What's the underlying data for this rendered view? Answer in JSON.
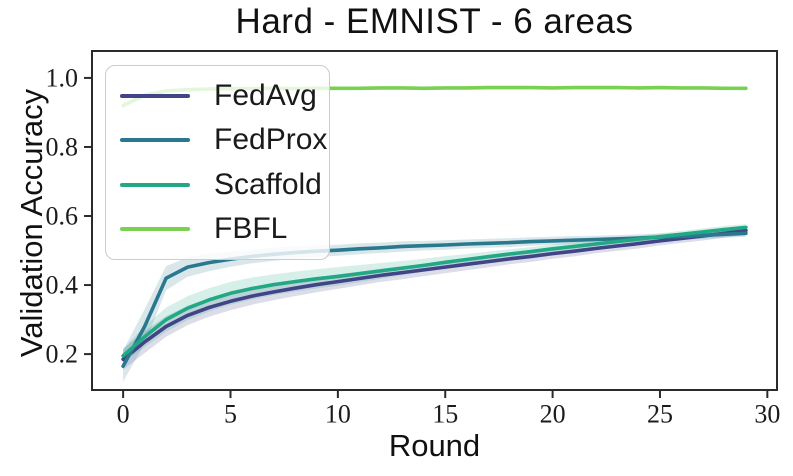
{
  "chart_data": {
    "type": "line",
    "title": "Hard - EMNIST - 6 areas",
    "xlabel": "Round",
    "ylabel": "Validation Accuracy",
    "x_ticks": [
      0,
      5,
      10,
      15,
      20,
      25,
      30
    ],
    "y_ticks": [
      0.2,
      0.4,
      0.6,
      0.8,
      1.0
    ],
    "xlim": [
      -1.45,
      30.45
    ],
    "ylim": [
      0.096,
      1.078
    ],
    "grid": false,
    "legend_position": "upper left",
    "x": [
      0,
      1,
      2,
      3,
      4,
      5,
      6,
      7,
      8,
      9,
      10,
      11,
      12,
      13,
      14,
      15,
      16,
      17,
      18,
      19,
      20,
      21,
      22,
      23,
      24,
      25,
      26,
      27,
      28,
      29
    ],
    "series": [
      {
        "name": "FedAvg",
        "color": "#414487",
        "values": [
          0.185,
          0.235,
          0.28,
          0.312,
          0.335,
          0.353,
          0.368,
          0.38,
          0.391,
          0.401,
          0.41,
          0.419,
          0.428,
          0.436,
          0.444,
          0.452,
          0.46,
          0.468,
          0.476,
          0.483,
          0.491,
          0.498,
          0.506,
          0.513,
          0.52,
          0.528,
          0.535,
          0.542,
          0.55,
          0.558
        ],
        "std": [
          0.03,
          0.032,
          0.03,
          0.028,
          0.027,
          0.026,
          0.025,
          0.024,
          0.023,
          0.022,
          0.021,
          0.02,
          0.019,
          0.019,
          0.018,
          0.018,
          0.017,
          0.017,
          0.016,
          0.016,
          0.015,
          0.015,
          0.014,
          0.014,
          0.014,
          0.013,
          0.013,
          0.013,
          0.013,
          0.013
        ]
      },
      {
        "name": "FedProx",
        "color": "#2a788e",
        "values": [
          0.165,
          0.28,
          0.42,
          0.452,
          0.465,
          0.475,
          0.483,
          0.489,
          0.494,
          0.498,
          0.501,
          0.505,
          0.508,
          0.512,
          0.514,
          0.516,
          0.519,
          0.521,
          0.523,
          0.526,
          0.528,
          0.53,
          0.532,
          0.534,
          0.536,
          0.539,
          0.541,
          0.544,
          0.547,
          0.55
        ],
        "std": [
          0.045,
          0.05,
          0.035,
          0.028,
          0.025,
          0.022,
          0.02,
          0.019,
          0.018,
          0.017,
          0.016,
          0.016,
          0.015,
          0.015,
          0.014,
          0.014,
          0.013,
          0.013,
          0.013,
          0.012,
          0.012,
          0.012,
          0.011,
          0.011,
          0.011,
          0.01,
          0.01,
          0.01,
          0.01,
          0.01
        ]
      },
      {
        "name": "Scaffold",
        "color": "#22a884",
        "values": [
          0.195,
          0.25,
          0.3,
          0.333,
          0.357,
          0.376,
          0.39,
          0.401,
          0.41,
          0.418,
          0.425,
          0.433,
          0.441,
          0.449,
          0.457,
          0.466,
          0.474,
          0.482,
          0.49,
          0.497,
          0.505,
          0.512,
          0.519,
          0.526,
          0.533,
          0.54,
          0.547,
          0.554,
          0.561,
          0.567
        ],
        "std": [
          0.02,
          0.03,
          0.035,
          0.035,
          0.034,
          0.033,
          0.032,
          0.03,
          0.029,
          0.028,
          0.027,
          0.025,
          0.023,
          0.021,
          0.019,
          0.018,
          0.016,
          0.015,
          0.014,
          0.013,
          0.012,
          0.012,
          0.011,
          0.011,
          0.01,
          0.01,
          0.01,
          0.01,
          0.01,
          0.01
        ]
      },
      {
        "name": "FBFL",
        "color": "#7ad151",
        "values": [
          0.92,
          0.95,
          0.962,
          0.966,
          0.968,
          0.969,
          0.969,
          0.97,
          0.969,
          0.97,
          0.97,
          0.97,
          0.971,
          0.971,
          0.97,
          0.971,
          0.971,
          0.972,
          0.972,
          0.972,
          0.971,
          0.972,
          0.972,
          0.972,
          0.971,
          0.972,
          0.971,
          0.971,
          0.97,
          0.97
        ],
        "std": [
          0.008,
          0.006,
          0.005,
          0.005,
          0.004,
          0.004,
          0.004,
          0.004,
          0.004,
          0.004,
          0.004,
          0.004,
          0.004,
          0.004,
          0.004,
          0.004,
          0.004,
          0.004,
          0.004,
          0.004,
          0.004,
          0.004,
          0.004,
          0.004,
          0.004,
          0.004,
          0.004,
          0.004,
          0.004,
          0.004
        ]
      }
    ]
  }
}
